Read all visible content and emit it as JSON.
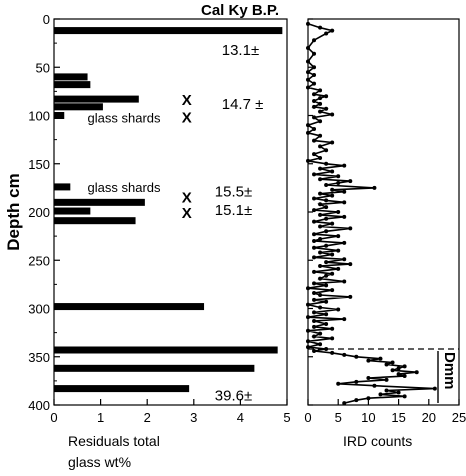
{
  "chart_data": [
    {
      "type": "bar",
      "orientation": "horizontal",
      "title": "Cal Ky B.P.",
      "xlabel_lines": [
        "Residuals total",
        "glass wt%"
      ],
      "ylabel": "Depth cm",
      "xlim": [
        0,
        5
      ],
      "ylim": [
        0,
        400
      ],
      "y_inverted": true,
      "x_ticks": [
        "0",
        "1",
        "2",
        "3",
        "4",
        "5"
      ],
      "y_ticks": [
        "0",
        "50",
        "100",
        "150",
        "200",
        "250",
        "300",
        "350",
        "400"
      ],
      "bars": [
        {
          "depth": 12,
          "value": 4.9
        },
        {
          "depth": 60,
          "value": 0.72
        },
        {
          "depth": 68,
          "value": 0.78
        },
        {
          "depth": 83,
          "value": 1.82
        },
        {
          "depth": 91,
          "value": 1.05
        },
        {
          "depth": 100,
          "value": 0.22
        },
        {
          "depth": 174,
          "value": 0.35
        },
        {
          "depth": 190,
          "value": 1.95
        },
        {
          "depth": 199,
          "value": 0.78
        },
        {
          "depth": 209,
          "value": 1.75
        },
        {
          "depth": 298,
          "value": 3.22
        },
        {
          "depth": 343,
          "value": 4.8
        },
        {
          "depth": 362,
          "value": 4.3
        },
        {
          "depth": 383,
          "value": 2.9
        }
      ],
      "x_markers": [
        {
          "x": 2.85,
          "depth": 84
        },
        {
          "x": 2.85,
          "depth": 102
        },
        {
          "x": 2.85,
          "depth": 185
        },
        {
          "x": 2.85,
          "depth": 201
        }
      ],
      "annotations": [
        {
          "text": "13.1±",
          "x": 3.6,
          "depth": 32,
          "size": "large"
        },
        {
          "text": "14.7 ±",
          "x": 3.6,
          "depth": 88,
          "size": "large"
        },
        {
          "text": "glass shards",
          "x": 0.72,
          "depth": 102,
          "size": "small"
        },
        {
          "text": "glass shards",
          "x": 0.72,
          "depth": 174,
          "size": "small"
        },
        {
          "text": "15.5±",
          "x": 3.45,
          "depth": 179,
          "size": "large"
        },
        {
          "text": "15.1±",
          "x": 3.45,
          "depth": 198,
          "size": "large"
        },
        {
          "text": "39.6±",
          "x": 3.45,
          "depth": 390,
          "size": "large"
        }
      ]
    },
    {
      "type": "line",
      "xlabel": "IRD counts",
      "xlim": [
        0,
        25
      ],
      "ylim": [
        0,
        400
      ],
      "y_inverted": true,
      "x_ticks": [
        "0",
        "5",
        "10",
        "15",
        "20",
        "25"
      ],
      "marker": "circle",
      "points": [
        [
          0,
          5
        ],
        [
          2,
          9
        ],
        [
          4,
          12
        ],
        [
          3,
          15
        ],
        [
          1,
          22
        ],
        [
          0,
          30
        ],
        [
          1,
          36
        ],
        [
          0,
          44
        ],
        [
          1,
          50
        ],
        [
          0,
          55
        ],
        [
          1,
          58
        ],
        [
          0,
          63
        ],
        [
          1,
          67
        ],
        [
          0,
          71
        ],
        [
          2,
          74
        ],
        [
          1,
          78
        ],
        [
          3,
          80
        ],
        [
          2,
          82
        ],
        [
          1,
          85
        ],
        [
          2,
          88
        ],
        [
          1,
          91
        ],
        [
          3,
          93
        ],
        [
          2,
          96
        ],
        [
          4,
          99
        ],
        [
          1,
          102
        ],
        [
          2,
          106
        ],
        [
          0,
          110
        ],
        [
          1,
          114
        ],
        [
          0,
          118
        ],
        [
          2,
          121
        ],
        [
          1,
          126
        ],
        [
          4,
          128
        ],
        [
          2,
          132
        ],
        [
          3,
          136
        ],
        [
          1,
          140
        ],
        [
          2,
          144
        ],
        [
          0,
          147
        ],
        [
          3,
          150
        ],
        [
          6,
          152
        ],
        [
          2,
          155
        ],
        [
          4,
          158
        ],
        [
          1,
          161
        ],
        [
          5,
          163
        ],
        [
          2,
          166
        ],
        [
          7,
          168
        ],
        [
          5,
          170
        ],
        [
          3,
          172
        ],
        [
          11,
          175
        ],
        [
          4,
          177
        ],
        [
          6,
          179
        ],
        [
          2,
          181
        ],
        [
          4,
          183
        ],
        [
          1,
          186
        ],
        [
          3,
          188
        ],
        [
          6,
          190
        ],
        [
          2,
          192
        ],
        [
          3,
          195
        ],
        [
          1,
          198
        ],
        [
          5,
          200
        ],
        [
          2,
          203
        ],
        [
          6,
          205
        ],
        [
          3,
          207
        ],
        [
          1,
          210
        ],
        [
          4,
          212
        ],
        [
          2,
          215
        ],
        [
          7,
          217
        ],
        [
          3,
          220
        ],
        [
          1,
          223
        ],
        [
          5,
          225
        ],
        [
          2,
          228
        ],
        [
          1,
          230
        ],
        [
          6,
          232
        ],
        [
          3,
          235
        ],
        [
          1,
          237
        ],
        [
          5,
          240
        ],
        [
          2,
          242
        ],
        [
          4,
          244
        ],
        [
          1,
          247
        ],
        [
          6,
          249
        ],
        [
          3,
          252
        ],
        [
          7,
          254
        ],
        [
          2,
          256
        ],
        [
          5,
          259
        ],
        [
          1,
          262
        ],
        [
          4,
          264
        ],
        [
          3,
          266
        ],
        [
          2,
          269
        ],
        [
          6,
          272
        ],
        [
          1,
          274
        ],
        [
          3,
          276
        ],
        [
          0,
          279
        ],
        [
          4,
          281
        ],
        [
          1,
          284
        ],
        [
          2,
          286
        ],
        [
          7,
          288
        ],
        [
          1,
          291
        ],
        [
          3,
          293
        ],
        [
          0,
          296
        ],
        [
          2,
          299
        ],
        [
          5,
          301
        ],
        [
          1,
          304
        ],
        [
          3,
          306
        ],
        [
          0,
          309
        ],
        [
          6,
          311
        ],
        [
          1,
          313
        ],
        [
          3,
          316
        ],
        [
          1,
          319
        ],
        [
          4,
          321
        ],
        [
          0,
          323
        ],
        [
          2,
          326
        ],
        [
          1,
          329
        ],
        [
          4,
          331
        ],
        [
          0,
          334
        ],
        [
          2,
          337
        ],
        [
          0,
          340
        ],
        [
          3,
          342
        ],
        [
          1,
          344
        ],
        [
          4,
          346
        ],
        [
          6,
          348
        ],
        [
          8,
          350
        ],
        [
          12,
          352
        ],
        [
          10,
          354
        ],
        [
          14,
          356
        ],
        [
          13,
          358
        ],
        [
          16,
          360
        ],
        [
          15,
          362
        ],
        [
          14,
          364
        ],
        [
          18,
          366
        ],
        [
          15,
          368
        ],
        [
          16,
          370
        ],
        [
          10,
          372
        ],
        [
          13,
          374
        ],
        [
          8,
          376
        ],
        [
          5,
          378
        ],
        [
          11,
          380
        ],
        [
          21,
          383
        ],
        [
          13,
          385
        ],
        [
          15,
          387
        ],
        [
          12,
          389
        ],
        [
          16,
          391
        ],
        [
          10,
          393
        ],
        [
          8,
          395
        ],
        [
          6,
          398
        ]
      ]
    }
  ],
  "dmm_label": "Dmm"
}
